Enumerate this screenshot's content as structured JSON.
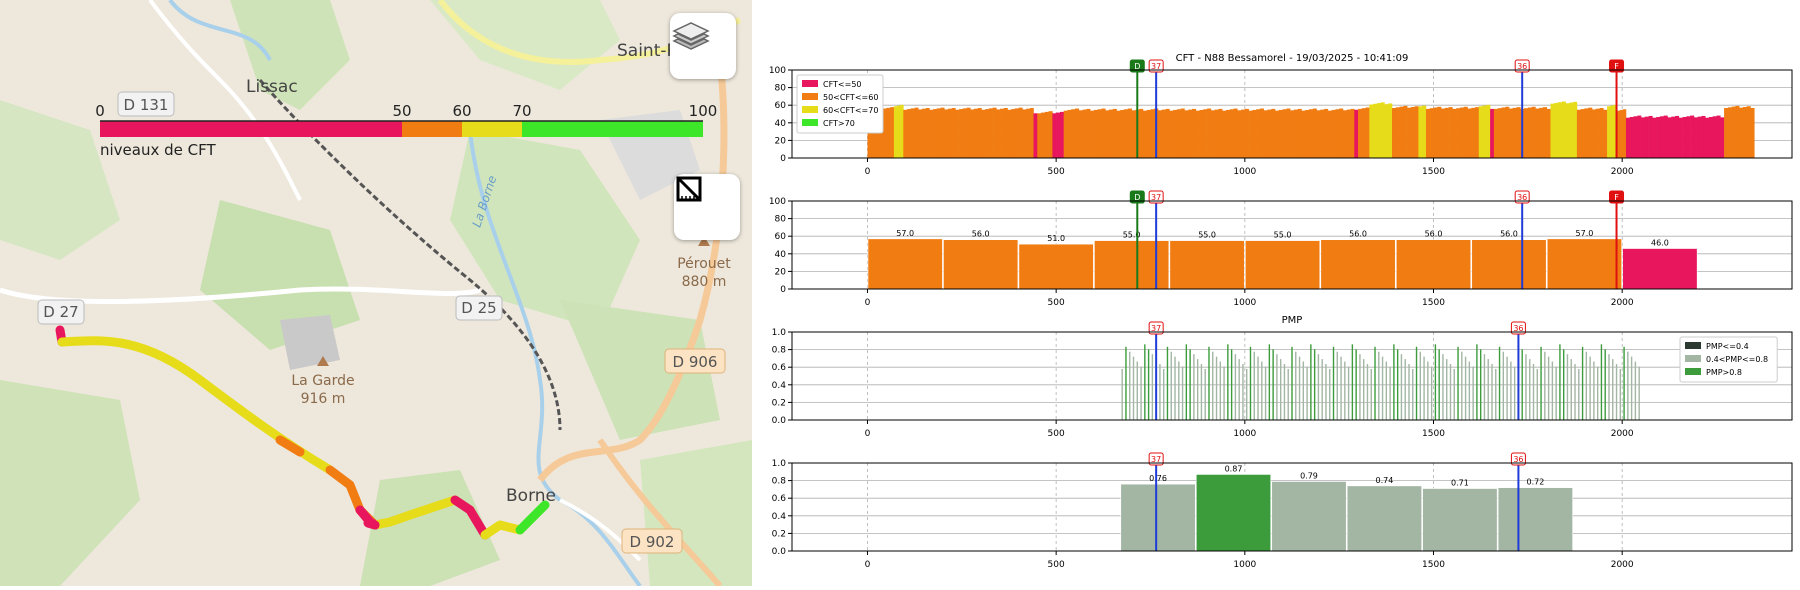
{
  "map": {
    "labels": {
      "saint_p": "Saint-P",
      "lissac": "Lissac",
      "d131": "D 131",
      "d27": "D 27",
      "d25": "D 25",
      "d906": "D 906",
      "d902": "D 902",
      "perouet": "Pérouet",
      "perouet_alt": "880 m",
      "la_garde": "La Garde",
      "la_garde_alt": "916 m",
      "borne": "Borne",
      "la_borne": "La Borne"
    },
    "legend": {
      "ticks": [
        "0",
        "50",
        "60",
        "70",
        "100"
      ],
      "caption": "niveaux de CFT",
      "colors": [
        "#e8175d",
        "#f07c12",
        "#e6dc1a",
        "#3ee62a"
      ]
    },
    "buttons": {
      "layers": "layers-icon",
      "measure": "ruler-icon"
    }
  },
  "chart_data": [
    {
      "type": "area",
      "title": "CFT - N88 Bessamorel  - 19/03/2025 - 10:41:09",
      "xlim": [
        -200,
        2450
      ],
      "ylim": [
        0,
        100
      ],
      "yticks": [
        "0",
        "20",
        "40",
        "60",
        "80",
        "100"
      ],
      "xticks": [
        "0",
        "500",
        "1000",
        "1500",
        "2000"
      ],
      "legend": [
        {
          "label": "CFT<=50",
          "color": "#e8175d"
        },
        {
          "label": "50<CFT<=60",
          "color": "#f07c12"
        },
        {
          "label": "60<CFT<=70",
          "color": "#e6dc1a"
        },
        {
          "label": "CFT>70",
          "color": "#3ee62a"
        }
      ],
      "segments": [
        {
          "x0": 0,
          "x1": 70,
          "y": 57,
          "cls": 1
        },
        {
          "x0": 70,
          "x1": 95,
          "y": 60,
          "cls": 2
        },
        {
          "x0": 95,
          "x1": 440,
          "y": 56,
          "cls": 1
        },
        {
          "x0": 440,
          "x1": 450,
          "y": 52,
          "cls": 0
        },
        {
          "x0": 450,
          "x1": 490,
          "y": 52,
          "cls": 1
        },
        {
          "x0": 490,
          "x1": 520,
          "y": 52,
          "cls": 0
        },
        {
          "x0": 520,
          "x1": 1290,
          "y": 55,
          "cls": 1
        },
        {
          "x0": 1290,
          "x1": 1300,
          "y": 56,
          "cls": 0
        },
        {
          "x0": 1300,
          "x1": 1330,
          "y": 57,
          "cls": 1
        },
        {
          "x0": 1330,
          "x1": 1390,
          "y": 62,
          "cls": 2
        },
        {
          "x0": 1390,
          "x1": 1460,
          "y": 58,
          "cls": 1
        },
        {
          "x0": 1460,
          "x1": 1480,
          "y": 60,
          "cls": 2
        },
        {
          "x0": 1480,
          "x1": 1620,
          "y": 57,
          "cls": 1
        },
        {
          "x0": 1620,
          "x1": 1650,
          "y": 60,
          "cls": 2
        },
        {
          "x0": 1650,
          "x1": 1660,
          "y": 57,
          "cls": 0
        },
        {
          "x0": 1660,
          "x1": 1810,
          "y": 57,
          "cls": 1
        },
        {
          "x0": 1810,
          "x1": 1880,
          "y": 63,
          "cls": 2
        },
        {
          "x0": 1880,
          "x1": 1960,
          "y": 56,
          "cls": 1
        },
        {
          "x0": 1960,
          "x1": 1985,
          "y": 60,
          "cls": 2
        },
        {
          "x0": 1985,
          "x1": 2010,
          "y": 55,
          "cls": 1
        },
        {
          "x0": 2010,
          "x1": 2270,
          "y": 47,
          "cls": 0
        },
        {
          "x0": 2270,
          "x1": 2350,
          "y": 58,
          "cls": 1
        }
      ],
      "markers": [
        {
          "x": 715,
          "label": "D",
          "color": "#1a7a1a"
        },
        {
          "x": 765,
          "label": "37",
          "color": "#1f3bd8"
        },
        {
          "x": 1735,
          "label": "36",
          "color": "#1f3bd8"
        },
        {
          "x": 1985,
          "label": "F",
          "color": "#e01010"
        }
      ]
    },
    {
      "type": "bar",
      "xlim": [
        -200,
        2450
      ],
      "ylim": [
        0,
        100
      ],
      "yticks": [
        "0",
        "20",
        "40",
        "60",
        "80",
        "100"
      ],
      "xticks": [
        "0",
        "500",
        "1000",
        "1500",
        "2000"
      ],
      "bars": [
        {
          "x0": 0,
          "x1": 200,
          "value": 57.0,
          "label": "57.0"
        },
        {
          "x0": 200,
          "x1": 400,
          "value": 56.0,
          "label": "56.0"
        },
        {
          "x0": 400,
          "x1": 600,
          "value": 51.0,
          "label": "51.0"
        },
        {
          "x0": 600,
          "x1": 800,
          "value": 55.0,
          "label": "55.0"
        },
        {
          "x0": 800,
          "x1": 1000,
          "value": 55.0,
          "label": "55.0"
        },
        {
          "x0": 1000,
          "x1": 1200,
          "value": 55.0,
          "label": "55.0"
        },
        {
          "x0": 1200,
          "x1": 1400,
          "value": 56.0,
          "label": "56.0"
        },
        {
          "x0": 1400,
          "x1": 1600,
          "value": 56.0,
          "label": "56.0"
        },
        {
          "x0": 1600,
          "x1": 1800,
          "value": 56.0,
          "label": "56.0"
        },
        {
          "x0": 1800,
          "x1": 2000,
          "value": 57.0,
          "label": "57.0"
        },
        {
          "x0": 2000,
          "x1": 2200,
          "value": 46.0,
          "label": "46.0"
        }
      ],
      "markers": [
        {
          "x": 715,
          "label": "D",
          "color": "#1a7a1a"
        },
        {
          "x": 765,
          "label": "37",
          "color": "#1f3bd8"
        },
        {
          "x": 1735,
          "label": "36",
          "color": "#1f3bd8"
        },
        {
          "x": 1985,
          "label": "F",
          "color": "#e01010"
        }
      ]
    },
    {
      "type": "bar",
      "title": "PMP",
      "xlim": [
        -200,
        2450
      ],
      "ylim": [
        0,
        1
      ],
      "yticks": [
        "0.0",
        "0.2",
        "0.4",
        "0.6",
        "0.8",
        "1.0"
      ],
      "xticks": [
        "0",
        "500",
        "1000",
        "1500",
        "2000"
      ],
      "legend": [
        {
          "label": "PMP<=0.4",
          "color": "#2d3a32"
        },
        {
          "label": "0.4<PMP<=0.8",
          "color": "#a3b5a3"
        },
        {
          "label": "PMP>0.8",
          "color": "#3c9c3c"
        }
      ],
      "x_start": 675,
      "x_end": 2045,
      "x_step": 10,
      "markers": [
        {
          "x": 765,
          "label": "37",
          "color": "#1f3bd8"
        },
        {
          "x": 1725,
          "label": "36",
          "color": "#1f3bd8"
        }
      ]
    },
    {
      "type": "bar",
      "xlim": [
        -200,
        2450
      ],
      "ylim": [
        0,
        1
      ],
      "yticks": [
        "0.0",
        "0.2",
        "0.4",
        "0.6",
        "0.8",
        "1.0"
      ],
      "xticks": [
        "0",
        "500",
        "1000",
        "1500",
        "2000"
      ],
      "bars": [
        {
          "x0": 670,
          "x1": 870,
          "value": 0.76,
          "label": "0.76",
          "cls": 1
        },
        {
          "x0": 870,
          "x1": 1070,
          "value": 0.87,
          "label": "0.87",
          "cls": 2
        },
        {
          "x0": 1070,
          "x1": 1270,
          "value": 0.79,
          "label": "0.79",
          "cls": 1
        },
        {
          "x0": 1270,
          "x1": 1470,
          "value": 0.74,
          "label": "0.74",
          "cls": 1
        },
        {
          "x0": 1470,
          "x1": 1670,
          "value": 0.71,
          "label": "0.71",
          "cls": 1
        },
        {
          "x0": 1670,
          "x1": 1870,
          "value": 0.72,
          "label": "0.72",
          "cls": 1
        }
      ],
      "markers": [
        {
          "x": 765,
          "label": "37",
          "color": "#1f3bd8"
        },
        {
          "x": 1725,
          "label": "36",
          "color": "#1f3bd8"
        }
      ]
    }
  ]
}
